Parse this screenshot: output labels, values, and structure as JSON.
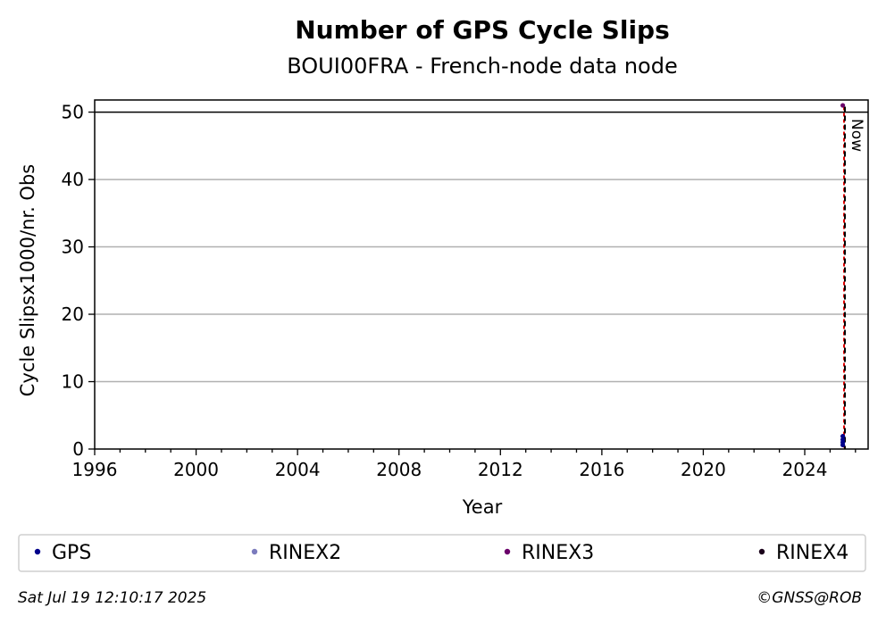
{
  "chart_data": {
    "type": "scatter",
    "title": "Number of GPS Cycle Slips",
    "subtitle": "BOUI00FRA - French-node data node",
    "xlabel": "Year",
    "ylabel": "Cycle Slipsx1000/nr. Obs",
    "xlim": [
      1996,
      2026.5
    ],
    "ylim": [
      0,
      51.8
    ],
    "x_ticks": [
      "1996",
      "2000",
      "2004",
      "2008",
      "2012",
      "2016",
      "2020",
      "2024"
    ],
    "y_ticks": [
      "0",
      "10",
      "20",
      "30",
      "40",
      "50"
    ],
    "grid": "horizontal",
    "reference_line": {
      "y": 50,
      "color": "#000000"
    },
    "now_marker": {
      "x": 2025.55,
      "label": "Now"
    },
    "series": [
      {
        "name": "GPS",
        "color": "#00008b",
        "points": [
          [
            2025.5,
            0.6
          ],
          [
            2025.5,
            1.0
          ],
          [
            2025.5,
            1.4
          ],
          [
            2025.5,
            1.9
          ]
        ]
      },
      {
        "name": "RINEX2",
        "color": "#7b7bbd",
        "points": []
      },
      {
        "name": "RINEX3",
        "color": "#6a006a",
        "points": [
          [
            2025.5,
            51.0
          ]
        ]
      },
      {
        "name": "RINEX4",
        "color": "#1a001a",
        "points": []
      }
    ],
    "legend_position": "bottom"
  },
  "footer": {
    "timestamp": "Sat Jul 19 12:10:17 2025",
    "credit": "©GNSS@ROB"
  }
}
